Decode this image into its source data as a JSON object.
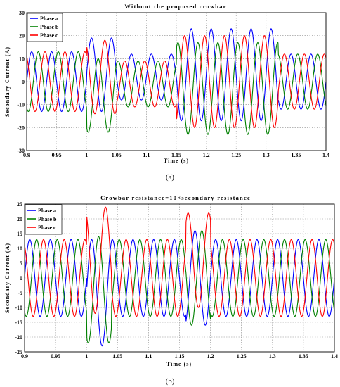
{
  "chart_data": [
    {
      "type": "line",
      "title": "Without the proposed crowbar",
      "xlabel": "Time (s)",
      "ylabel": "Secondary Current (A)",
      "xlim": [
        0.9,
        1.4
      ],
      "ylim": [
        -30,
        30
      ],
      "xticks": [
        "0.9",
        "0.95",
        "1",
        "1.05",
        "1.1",
        "1.15",
        "1.2",
        "1.25",
        "1.3",
        "1.35",
        "1.4"
      ],
      "yticks": [
        "30",
        "20",
        "10",
        "0",
        "-10",
        "-20",
        "-30"
      ],
      "grid": true,
      "legend_position": "top-left",
      "caption": "(a)",
      "waveform": {
        "frequency_hz": 30,
        "segments": [
          {
            "t_start": 0.9,
            "t_end": 1.0,
            "amplitude": 13,
            "offset_a": 0,
            "offset_b": 0,
            "offset_c": 0
          },
          {
            "t_start": 1.0,
            "t_end": 1.05,
            "amplitude": 16,
            "offset_a": 3,
            "offset_b": -6,
            "offset_c": 2
          },
          {
            "t_start": 1.05,
            "t_end": 1.15,
            "amplitude": 10,
            "offset_a": 2,
            "offset_b": -1,
            "offset_c": -1
          },
          {
            "t_start": 1.15,
            "t_end": 1.32,
            "amplitude": 20,
            "offset_a": 3,
            "offset_b": -3,
            "offset_c": 0
          },
          {
            "t_start": 1.32,
            "t_end": 1.4,
            "amplitude": 12,
            "offset_a": 0,
            "offset_b": 0,
            "offset_c": 0
          }
        ]
      },
      "series": [
        {
          "name": "Phase a",
          "color": "#0000ff",
          "phase_deg": 0
        },
        {
          "name": "Phase b",
          "color": "#008000",
          "phase_deg": -120
        },
        {
          "name": "Phase c",
          "color": "#ff0000",
          "phase_deg": 120
        }
      ]
    },
    {
      "type": "line",
      "title": "Crowbar resistance=10×secondary resistance",
      "xlabel": "Time (s)",
      "ylabel": "Secondary Current (A)",
      "xlim": [
        0.9,
        1.4
      ],
      "ylim": [
        -25,
        25
      ],
      "xticks": [
        "0.9",
        "0.95",
        "1",
        "1.05",
        "1.1",
        "1.15",
        "1.2",
        "1.25",
        "1.3",
        "1.35",
        "1.4"
      ],
      "yticks": [
        "25",
        "20",
        "15",
        "10",
        "5",
        "0",
        "-5",
        "-10",
        "-15",
        "-20",
        "-25"
      ],
      "grid": true,
      "legend_position": "top-left",
      "caption": "(b)",
      "waveform": {
        "frequency_hz": 30,
        "segments": [
          {
            "t_start": 0.9,
            "t_end": 1.0,
            "amplitude": 13,
            "offset_a": 0,
            "offset_b": 0,
            "offset_c": 0
          },
          {
            "t_start": 1.0,
            "t_end": 1.04,
            "amplitude": 18,
            "offset_a": -5,
            "offset_b": -4,
            "offset_c": 6
          },
          {
            "t_start": 1.04,
            "t_end": 1.16,
            "amplitude": 13,
            "offset_a": 0,
            "offset_b": 0,
            "offset_c": 0
          },
          {
            "t_start": 1.16,
            "t_end": 1.2,
            "amplitude": 16,
            "offset_a": 0,
            "offset_b": 0,
            "offset_c": 6
          },
          {
            "t_start": 1.2,
            "t_end": 1.4,
            "amplitude": 13,
            "offset_a": 0,
            "offset_b": 0,
            "offset_c": 0
          }
        ]
      },
      "series": [
        {
          "name": "Phase a",
          "color": "#0000ff",
          "phase_deg": 0
        },
        {
          "name": "Phase b",
          "color": "#008000",
          "phase_deg": -120
        },
        {
          "name": "Phase c",
          "color": "#ff0000",
          "phase_deg": 120
        }
      ]
    }
  ]
}
